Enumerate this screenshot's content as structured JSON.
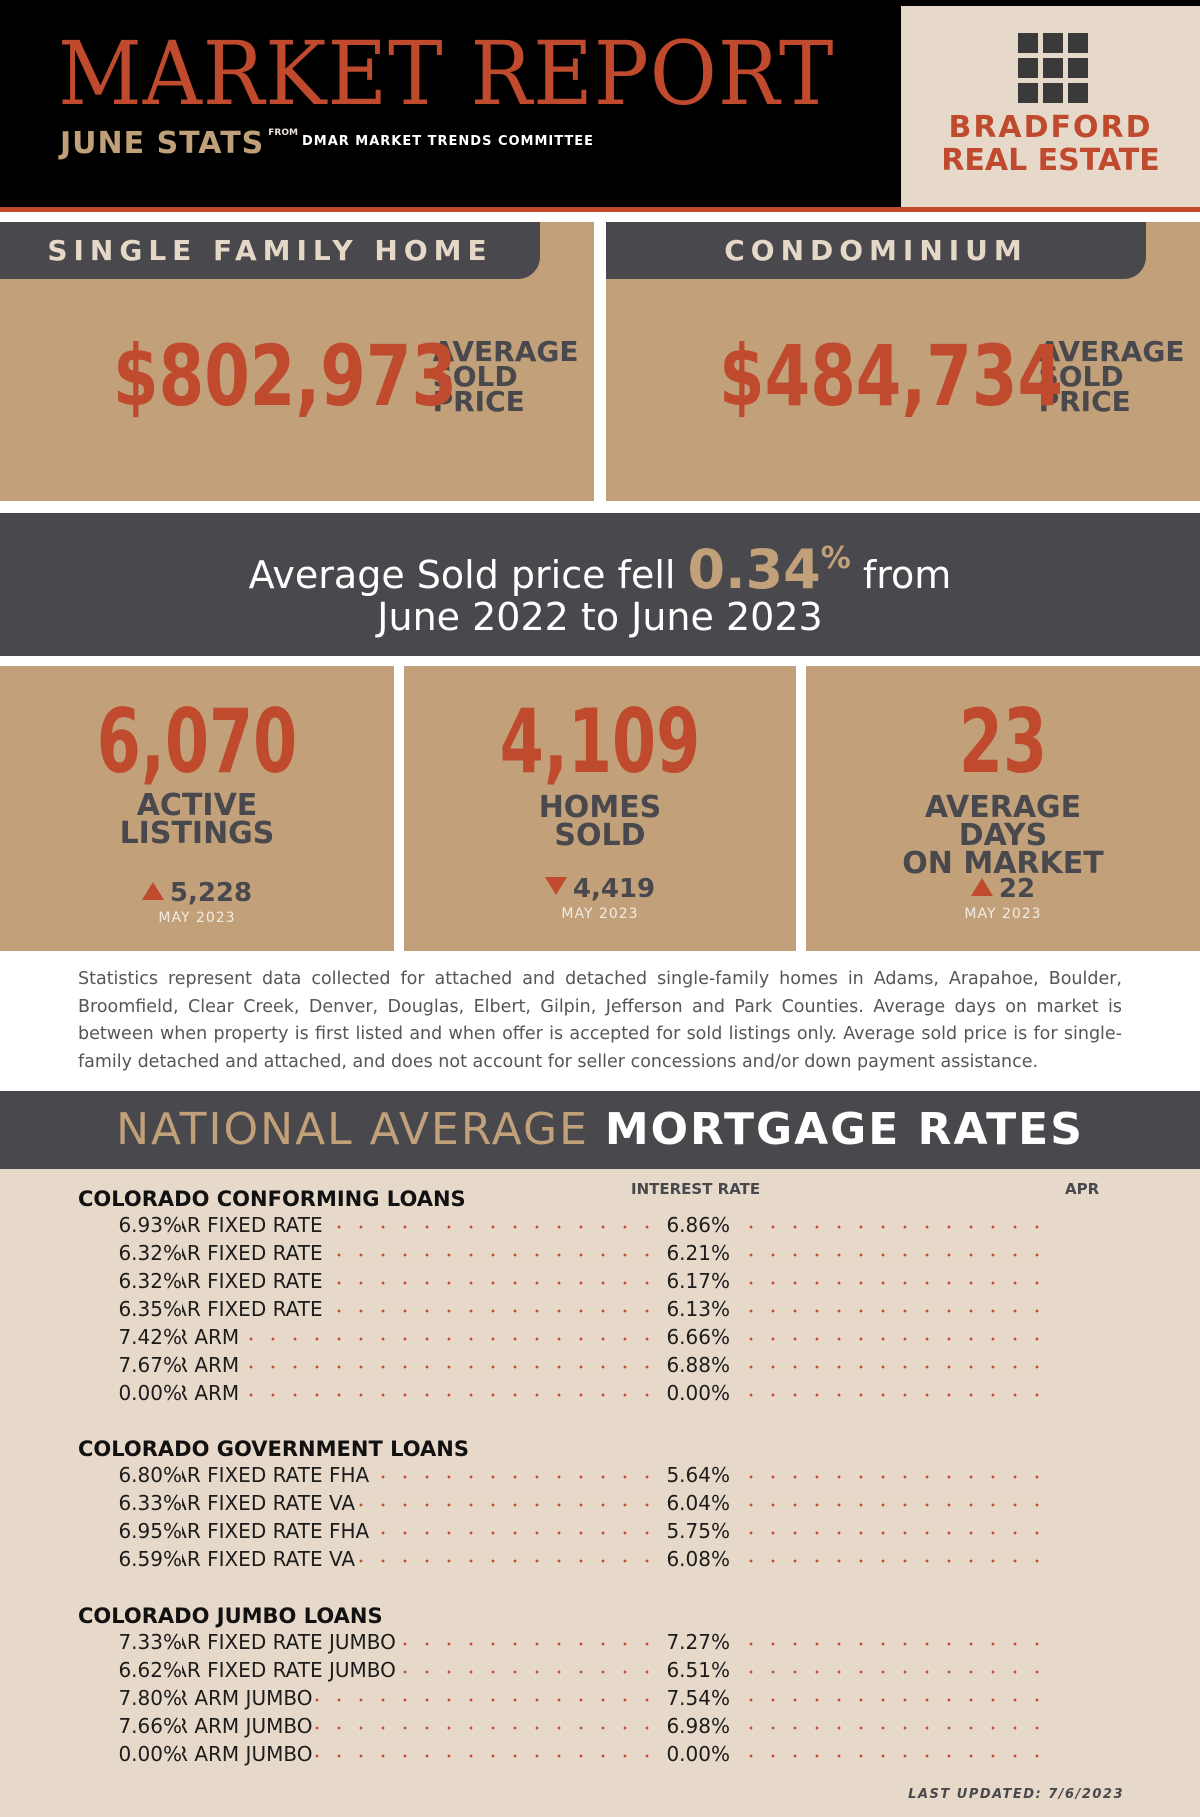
{
  "header": {
    "title": "MARKET REPORT",
    "subtitle": "JUNE STATS",
    "from_label": "FROM",
    "source": "DMAR MARKET TRENDS COMMITTEE",
    "logo_line1": "BRADFORD",
    "logo_line2": "REAL ESTATE"
  },
  "single_family": {
    "tab": "SINGLE FAMILY HOME",
    "price": "$802,973",
    "label_lines": [
      "AVERAGE",
      "SOLD",
      "PRICE"
    ]
  },
  "condominium": {
    "tab": "CONDOMINIUM",
    "price": "$484,734",
    "label_lines": [
      "AVERAGE",
      "SOLD",
      "PRICE"
    ]
  },
  "banner": {
    "text_before": "Average Sold price fell ",
    "percent": "0.34",
    "percent_sign": "%",
    "text_after": " from",
    "line2": "June 2022 to June 2023"
  },
  "stats": [
    {
      "value": "6,070",
      "label_lines": [
        "ACTIVE",
        "LISTINGS"
      ],
      "direction": "up",
      "compare": "5,228",
      "compare_period": "MAY 2023"
    },
    {
      "value": "4,109",
      "label_lines": [
        "HOMES",
        "SOLD"
      ],
      "direction": "down",
      "compare": "4,419",
      "compare_period": "MAY 2023"
    },
    {
      "value": "23",
      "label_lines": [
        "AVERAGE",
        "DAYS",
        "ON MARKET"
      ],
      "direction": "up",
      "compare": "22",
      "compare_period": "MAY 2023"
    }
  ],
  "disclaimer": "Statistics represent data collected for attached and detached single-family homes in Adams, Arapahoe, Boulder, Broomfield, Clear Creek, Denver, Douglas, Elbert, Gilpin, Jefferson and Park Counties. Average days on market is between when property is first listed and when offer is accepted for sold listings only. Average sold price is for single-family detached and attached, and does not account for seller concessions and/or down payment assistance.",
  "mortgage": {
    "heading_light": "NATIONAL AVERAGE ",
    "heading_bold": "MORTGAGE RATES",
    "col_interest": "INTEREST RATE",
    "col_apr": "APR",
    "sections": [
      {
        "title": "COLORADO CONFORMING LOANS",
        "rows": [
          {
            "label": "30-YEAR FIXED RATE",
            "rate": "6.86%",
            "apr": "6.93%"
          },
          {
            "label": "20-YEAR FIXED RATE",
            "rate": "6.21%",
            "apr": "6.32%"
          },
          {
            "label": "15-YEAR FIXED RATE",
            "rate": "6.17%",
            "apr": "6.32%"
          },
          {
            "label": "10-YEAR FIXED RATE",
            "rate": "6.13%",
            "apr": "6.35%"
          },
          {
            "label": "7-YEAR ARM",
            "rate": "6.66%",
            "apr": "7.42%"
          },
          {
            "label": "5-YEAR ARM",
            "rate": "6.88%",
            "apr": "7.67%"
          },
          {
            "label": "3-YEAR ARM",
            "rate": "0.00%",
            "apr": "0.00%"
          }
        ]
      },
      {
        "title": "COLORADO GOVERNMENT LOANS",
        "rows": [
          {
            "label": "30-YEAR FIXED RATE FHA",
            "rate": "5.64%",
            "apr": "6.80%"
          },
          {
            "label": "30-YEAR FIXED RATE VA",
            "rate": "6.04%",
            "apr": "6.33%"
          },
          {
            "label": "15-YEAR FIXED RATE FHA",
            "rate": "5.75%",
            "apr": "6.95%"
          },
          {
            "label": "15-YEAR FIXED RATE VA",
            "rate": "6.08%",
            "apr": "6.59%"
          }
        ]
      },
      {
        "title": "COLORADO JUMBO LOANS",
        "rows": [
          {
            "label": "30-YEAR FIXED RATE JUMBO",
            "rate": "7.27%",
            "apr": "7.33%"
          },
          {
            "label": "15-YEAR FIXED RATE JUMBO",
            "rate": "6.51%",
            "apr": "6.62%"
          },
          {
            "label": "7-YEAR ARM JUMBO",
            "rate": "7.54%",
            "apr": "7.80%"
          },
          {
            "label": "5-YEAR ARM JUMBO",
            "rate": "6.98%",
            "apr": "7.66%"
          },
          {
            "label": "3-YEAR ARM JUMBO",
            "rate": "0.00%",
            "apr": "0.00%"
          }
        ]
      }
    ],
    "last_updated": "LAST UPDATED: 7/6/2023"
  },
  "colors": {
    "accent_red": "#c04a2d",
    "tan": "#c1a07a",
    "charcoal": "#48484d",
    "cream": "#e6d9c9"
  }
}
